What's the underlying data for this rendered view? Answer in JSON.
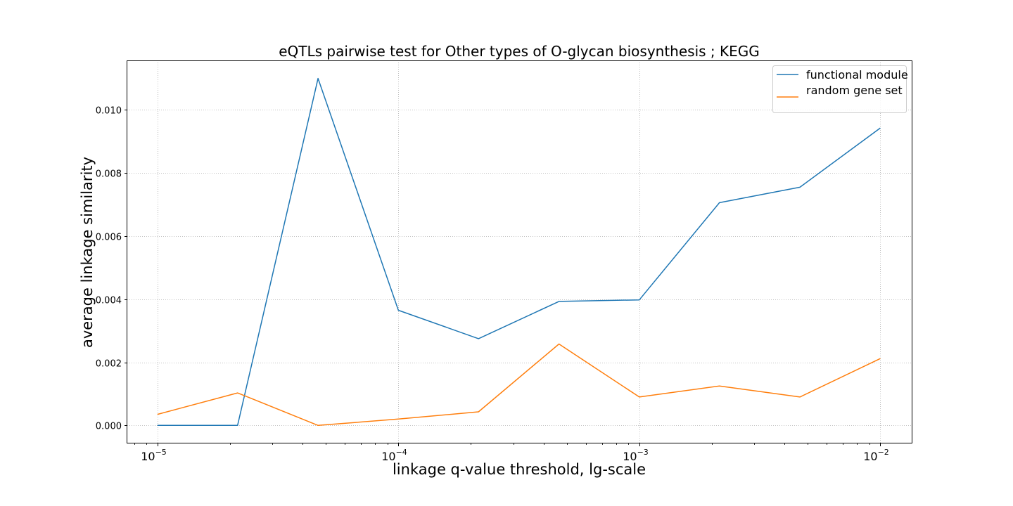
{
  "chart_data": {
    "type": "line",
    "title": "eQTLs pairwise test for Other types of O-glycan biosynthesis ; KEGG",
    "xlabel": "linkage q-value threshold, lg-scale",
    "ylabel": "average linkage similarity",
    "x_scale": "log",
    "x": [
      1e-05,
      2.15e-05,
      4.64e-05,
      0.0001,
      0.000215,
      0.000464,
      0.001,
      0.00215,
      0.00464,
      0.01
    ],
    "xticks": [
      {
        "value": 1e-05,
        "base": "10",
        "exp": "−5"
      },
      {
        "value": 0.0001,
        "base": "10",
        "exp": "−4"
      },
      {
        "value": 0.001,
        "base": "10",
        "exp": "−3"
      },
      {
        "value": 0.01,
        "base": "10",
        "exp": "−2"
      }
    ],
    "yticks": [
      "0.000",
      "0.002",
      "0.004",
      "0.006",
      "0.008",
      "0.010"
    ],
    "ytick_values": [
      0,
      0.002,
      0.004,
      0.006,
      0.008,
      0.01
    ],
    "xlim": [
      7.5e-06,
      0.0135
    ],
    "ylim": [
      -0.00055,
      0.01157
    ],
    "grid": true,
    "legend_position": "top-right",
    "series": [
      {
        "name": "functional module",
        "color": "#1f77b4",
        "values": [
          0.0,
          0.0,
          0.011,
          0.00365,
          0.00275,
          0.00393,
          0.00398,
          0.00706,
          0.00755,
          0.00943
        ]
      },
      {
        "name": "random gene set",
        "color": "#ff7f0e",
        "values": [
          0.00035,
          0.00103,
          0.0,
          0.0002,
          0.00043,
          0.00258,
          0.0009,
          0.00125,
          0.0009,
          0.00212
        ]
      }
    ]
  }
}
